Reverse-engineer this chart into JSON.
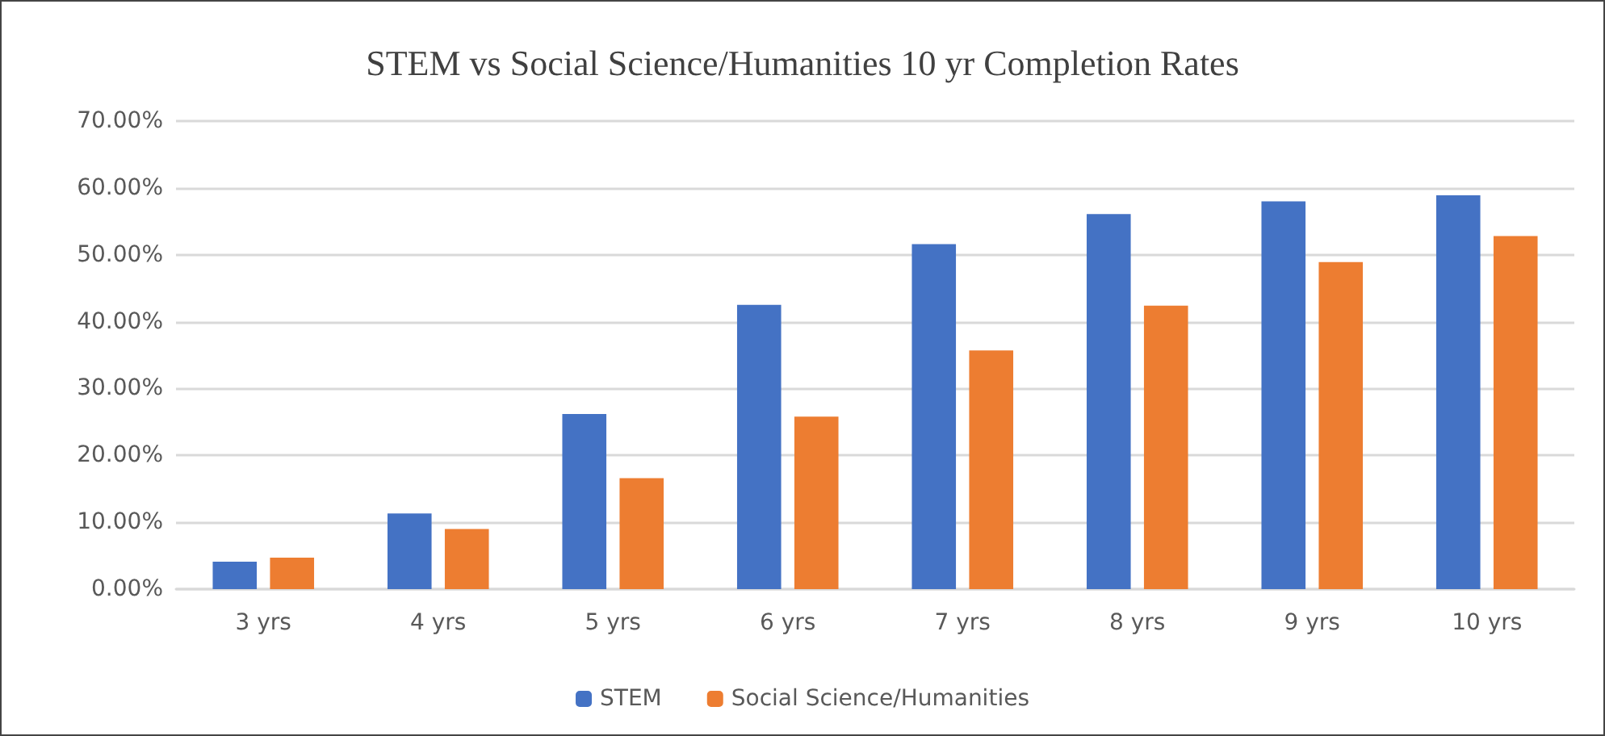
{
  "chart_data": {
    "type": "bar",
    "title": "STEM vs Social Science/Humanities 10 yr Completion Rates",
    "categories": [
      "3 yrs",
      "4 yrs",
      "5 yrs",
      "6 yrs",
      "7 yrs",
      "8 yrs",
      "9 yrs",
      "10 yrs"
    ],
    "series": [
      {
        "name": "STEM",
        "color": "#4472c4",
        "values": [
          4.1,
          11.3,
          26.2,
          42.5,
          51.6,
          56.1,
          58.0,
          58.9
        ]
      },
      {
        "name": "Social Science/Humanities",
        "color": "#ed7d31",
        "values": [
          4.7,
          9.0,
          16.6,
          25.8,
          35.7,
          42.4,
          48.9,
          52.8
        ]
      }
    ],
    "ylim": [
      0,
      70
    ],
    "yticks": [
      {
        "value": 0,
        "label": "0.00%"
      },
      {
        "value": 10,
        "label": "10.00%"
      },
      {
        "value": 20,
        "label": "20.00%"
      },
      {
        "value": 30,
        "label": "30.00%"
      },
      {
        "value": 40,
        "label": "40.00%"
      },
      {
        "value": 50,
        "label": "50.00%"
      },
      {
        "value": 60,
        "label": "60.00%"
      },
      {
        "value": 70,
        "label": "70.00%"
      }
    ],
    "grid": "y",
    "legend": "bottom"
  }
}
